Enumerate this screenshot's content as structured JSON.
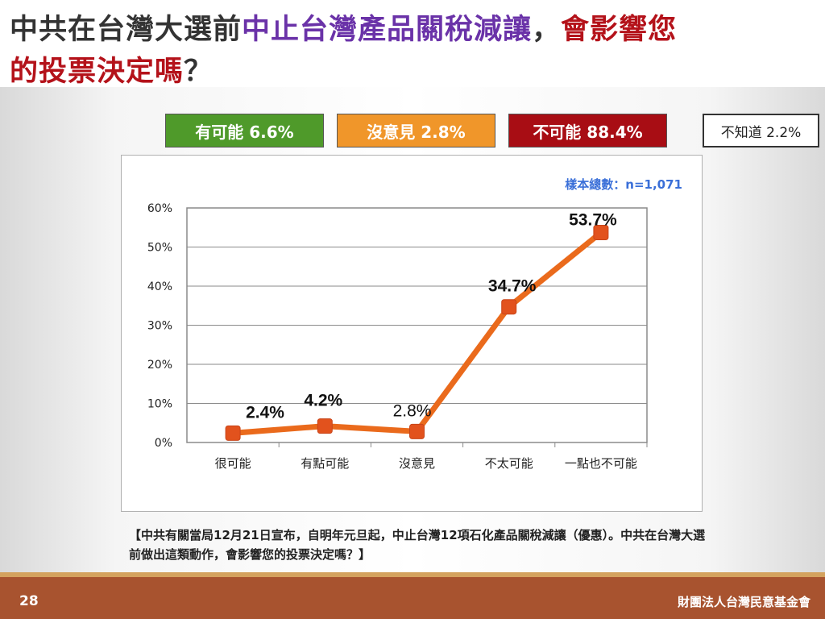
{
  "title": {
    "line1": [
      {
        "text": "中共在台灣大選前",
        "color": "#333333"
      },
      {
        "text": "中止台灣產品關稅減讓",
        "color": "#6a32a8"
      },
      {
        "text": "，",
        "color": "#333333"
      },
      {
        "text": "會影響您",
        "color": "#b4121a"
      }
    ],
    "line2": [
      {
        "text": "的投票決定嗎",
        "color": "#b4121a"
      },
      {
        "text": "？",
        "color": "#333333"
      }
    ]
  },
  "summary": [
    {
      "label": "有可能 6.6%",
      "bg": "#4f9a2a",
      "fg": "#ffffff"
    },
    {
      "label": "沒意見 2.8%",
      "bg": "#f0962a",
      "fg": "#ffffff"
    },
    {
      "label": "不可能 88.4%",
      "bg": "#a80d14",
      "fg": "#ffffff"
    },
    {
      "label": "不知道 2.2%",
      "bg": "#ffffff",
      "fg": "#222222"
    }
  ],
  "sample_label": "樣本總數：n=1,071",
  "chart_data": {
    "type": "line",
    "categories": [
      "很可能",
      "有點可能",
      "沒意見",
      "不太可能",
      "一點也不可能"
    ],
    "values": [
      2.4,
      4.2,
      2.8,
      34.7,
      53.7
    ],
    "data_labels": [
      "2.4%",
      "4.2%",
      "2.8%",
      "34.7%",
      "53.7%"
    ],
    "y_ticks": [
      "0%",
      "10%",
      "20%",
      "30%",
      "40%",
      "50%",
      "60%"
    ],
    "ylim": [
      0,
      60
    ],
    "grid": true,
    "line_color": "#ea6a1c",
    "marker_color": "#e2521d"
  },
  "question_note": "【中共有關當局12月21日宣布，自明年元旦起，中止台灣12項石化產品關稅減讓（優惠）。中共在台灣大選前做出這類動作，會影響您的投票決定嗎？】",
  "footer": {
    "page": "28",
    "org": "財團法人台灣民意基金會"
  }
}
